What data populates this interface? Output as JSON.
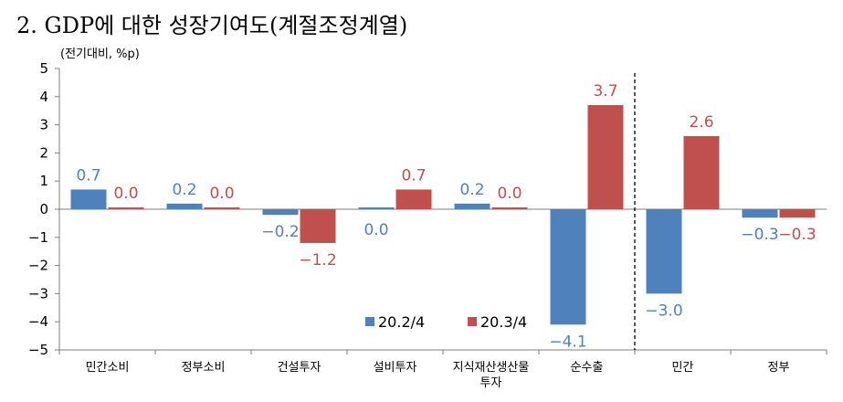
{
  "header": {
    "title": "2. GDP에 대한 성장기여도(계절조정계열)",
    "unit": "(전기대비, %p)"
  },
  "chart_data": {
    "type": "bar",
    "title": "2. GDP에 대한 성장기여도(계절조정계열)",
    "ylabel": "(전기대비, %p)",
    "xlabel": "",
    "ylim": [
      -5,
      5
    ],
    "yticks": [
      5,
      4,
      3,
      2,
      1,
      0,
      -1,
      -2,
      -3,
      -4,
      -5
    ],
    "ytick_labels": [
      "5",
      "4",
      "3",
      "2",
      "1",
      "0",
      "−1",
      "−2",
      "−3",
      "−4",
      "−5"
    ],
    "categories": [
      "민간소비",
      "정부소비",
      "건설투자",
      "설비투자",
      "지식재산생산물 투자",
      "순수출",
      "민간",
      "정부"
    ],
    "category_lines": [
      [
        "민간소비"
      ],
      [
        "정부소비"
      ],
      [
        "건설투자"
      ],
      [
        "설비투자"
      ],
      [
        "지식재산생산물",
        "투자"
      ],
      [
        "순수출"
      ],
      [
        "민간"
      ],
      [
        "정부"
      ]
    ],
    "series": [
      {
        "name": "20.2/4",
        "color": "#4f81bd",
        "values": [
          0.7,
          0.2,
          -0.2,
          0.0,
          0.2,
          -4.1,
          -3.0,
          -0.3
        ],
        "labels": [
          "0.7",
          "0.2",
          "−0.2",
          "0.0",
          "0.2",
          "−4.1",
          "−3.0",
          "−0.3"
        ]
      },
      {
        "name": "20.3/4",
        "color": "#c0504d",
        "values": [
          0.0,
          0.0,
          -1.2,
          0.7,
          0.0,
          3.7,
          2.6,
          -0.3
        ],
        "labels": [
          "0.0",
          "0.0",
          "−1.2",
          "0.7",
          "0.0",
          "3.7",
          "2.6",
          "−0.3"
        ]
      }
    ],
    "divider_after_category": "순수출",
    "grid": false,
    "legend_position": "bottom-center"
  }
}
